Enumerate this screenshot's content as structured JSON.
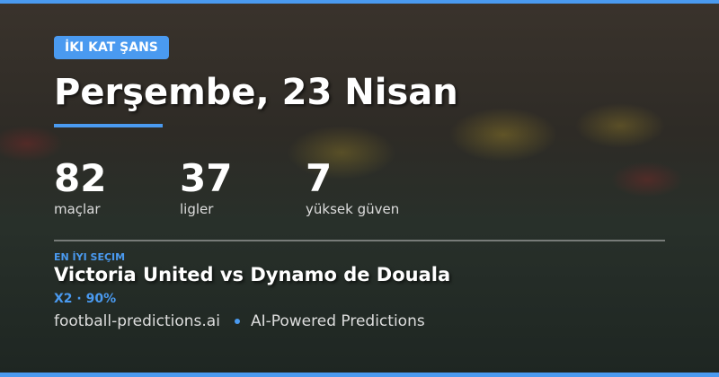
{
  "badge": "İKI KAT ŞANS",
  "title": "Perşembe, 23 Nisan",
  "stats": [
    {
      "value": "82",
      "label": "maçlar"
    },
    {
      "value": "37",
      "label": "ligler"
    },
    {
      "value": "7",
      "label": "yüksek güven"
    }
  ],
  "best": {
    "label": "EN İYI SEÇIM",
    "match": "Victoria United vs Dynamo de Douala",
    "pick": "X2 · 90%"
  },
  "footer": {
    "site": "football-predictions.ai",
    "tagline": "AI-Powered Predictions"
  },
  "colors": {
    "accent": "#4a9af0"
  }
}
